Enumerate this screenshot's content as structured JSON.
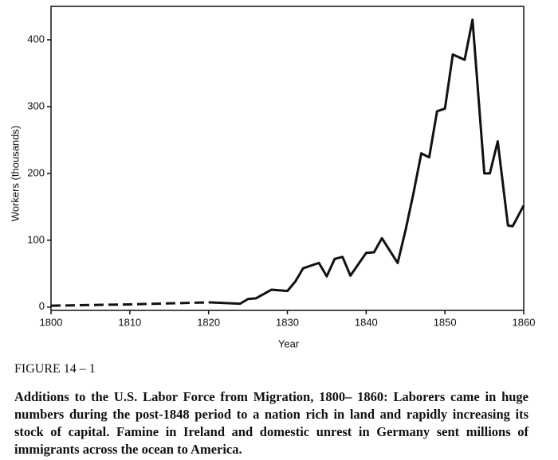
{
  "chart_data": {
    "type": "line",
    "xlabel": "Year",
    "ylabel": "Workers (thousands)",
    "xlim": [
      1800,
      1860
    ],
    "xticks": [
      1800,
      1810,
      1820,
      1830,
      1840,
      1850,
      1860
    ],
    "ylim": [
      -5,
      450
    ],
    "yticks": [
      0,
      100,
      200,
      300,
      400
    ],
    "color": "#111111",
    "series": [
      {
        "dashed": true,
        "x": [
          1800,
          1810,
          1820
        ],
        "values": [
          2,
          4,
          7
        ]
      },
      {
        "dashed": false,
        "x": [
          1820,
          1824,
          1825,
          1826,
          1828,
          1830,
          1831,
          1832,
          1834,
          1835,
          1836,
          1837,
          1838,
          1840,
          1841,
          1842,
          1844,
          1845,
          1846,
          1847,
          1848,
          1849,
          1850,
          1851,
          1852.5,
          1853.5,
          1855,
          1855.7,
          1856.7,
          1858,
          1858.6,
          1860
        ],
        "values": [
          7,
          5,
          12,
          13,
          26,
          24,
          38,
          58,
          66,
          46,
          72,
          75,
          47,
          81,
          82,
          103,
          66,
          115,
          170,
          230,
          224,
          293,
          297,
          378,
          370,
          430,
          200,
          200,
          248,
          122,
          121,
          152
        ]
      }
    ]
  },
  "caption": {
    "label": "FIGURE 14 – 1",
    "text": "Additions to the U.S. Labor Force from Migration, 1800– 1860: Laborers came in huge numbers during the post-1848 period to a nation rich in land and rapidly increasing its stock of capital. Famine in Ireland and domestic unrest in Germany sent millions of immigrants across the ocean to America."
  }
}
